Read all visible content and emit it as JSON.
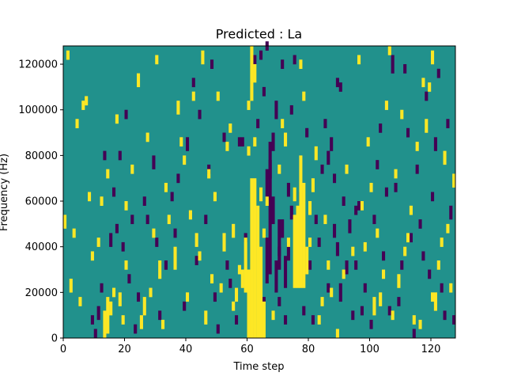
{
  "chart_data": {
    "type": "heatmap",
    "title": "Predicted : La",
    "xlabel": "Time step",
    "ylabel": "Frequency (Hz)",
    "xlim": [
      0,
      128
    ],
    "ylim": [
      0,
      128000
    ],
    "x_ticks": [
      0,
      20,
      40,
      60,
      80,
      100,
      120
    ],
    "x_tick_labels": [
      "0",
      "20",
      "40",
      "60",
      "80",
      "100",
      "120"
    ],
    "y_ticks": [
      0,
      20000,
      40000,
      60000,
      80000,
      100000,
      120000
    ],
    "y_tick_labels": [
      "0",
      "20000",
      "40000",
      "60000",
      "80000",
      "100000",
      "120000"
    ],
    "n_time_steps": 128,
    "n_freq_bins": 128,
    "freq_bin_width_hz": 1000,
    "colormap": "viridis",
    "value_levels": {
      "low": -1,
      "mid": 0,
      "high": 1
    },
    "colors": {
      "low": "#440154",
      "mid": "#21918c",
      "high": "#fde725"
    },
    "background_value": 0,
    "cells_high": [
      [
        60,
        0,
        30
      ],
      [
        61,
        0,
        70
      ],
      [
        62,
        0,
        70
      ],
      [
        63,
        0,
        58
      ],
      [
        64,
        0,
        40
      ],
      [
        65,
        0,
        16
      ],
      [
        59,
        20,
        24
      ],
      [
        58,
        22,
        8
      ],
      [
        75,
        22,
        32
      ],
      [
        76,
        22,
        36
      ],
      [
        77,
        22,
        58
      ],
      [
        78,
        22,
        46
      ],
      [
        79,
        28,
        12
      ],
      [
        13,
        0,
        12
      ],
      [
        14,
        2,
        16
      ],
      [
        15,
        10,
        6
      ],
      [
        16,
        18,
        4
      ],
      [
        18,
        14,
        6
      ],
      [
        20,
        30,
        4
      ],
      [
        25,
        4,
        6
      ],
      [
        26,
        10,
        8
      ],
      [
        31,
        26,
        8
      ],
      [
        36,
        30,
        10
      ],
      [
        43,
        40,
        6
      ],
      [
        46,
        6,
        6
      ],
      [
        48,
        24,
        4
      ],
      [
        52,
        38,
        8
      ],
      [
        55,
        44,
        6
      ],
      [
        56,
        16,
        6
      ],
      [
        57,
        28,
        4
      ],
      [
        60,
        100,
        4
      ],
      [
        61,
        104,
        24
      ],
      [
        62,
        112,
        8
      ],
      [
        64,
        60,
        6
      ],
      [
        71,
        92,
        4
      ],
      [
        72,
        84,
        6
      ],
      [
        75,
        60,
        6
      ],
      [
        80,
        54,
        6
      ],
      [
        81,
        64,
        6
      ],
      [
        82,
        78,
        6
      ],
      [
        84,
        14,
        4
      ],
      [
        89,
        0,
        4
      ],
      [
        98,
        38,
        4
      ],
      [
        101,
        10,
        8
      ],
      [
        103,
        14,
        6
      ],
      [
        104,
        26,
        4
      ],
      [
        109,
        22,
        6
      ],
      [
        112,
        42,
        4
      ],
      [
        115,
        82,
        4
      ],
      [
        116,
        4,
        4
      ],
      [
        118,
        90,
        6
      ],
      [
        119,
        108,
        4
      ],
      [
        120,
        16,
        4
      ],
      [
        121,
        12,
        8
      ],
      [
        122,
        30,
        4
      ],
      [
        123,
        40,
        4
      ],
      [
        124,
        76,
        6
      ],
      [
        125,
        46,
        4
      ],
      [
        126,
        20,
        4
      ],
      [
        127,
        66,
        6
      ],
      [
        2,
        20,
        6
      ],
      [
        3,
        44,
        4
      ],
      [
        5,
        14,
        4
      ],
      [
        6,
        100,
        4
      ],
      [
        8,
        60,
        4
      ],
      [
        11,
        40,
        4
      ],
      [
        14,
        70,
        4
      ],
      [
        17,
        94,
        4
      ],
      [
        20,
        56,
        4
      ],
      [
        24,
        110,
        6
      ],
      [
        27,
        86,
        4
      ],
      [
        30,
        120,
        4
      ],
      [
        33,
        64,
        4
      ],
      [
        37,
        98,
        6
      ],
      [
        39,
        76,
        4
      ],
      [
        41,
        52,
        4
      ],
      [
        45,
        120,
        6
      ],
      [
        50,
        104,
        4
      ],
      [
        54,
        90,
        4
      ],
      [
        66,
        58,
        4
      ],
      [
        70,
        72,
        4
      ],
      [
        78,
        104,
        4
      ],
      [
        83,
        6,
        4
      ],
      [
        86,
        30,
        4
      ],
      [
        91,
        26,
        4
      ],
      [
        96,
        120,
        4
      ],
      [
        100,
        64,
        4
      ],
      [
        106,
        124,
        4
      ],
      [
        110,
        96,
        4
      ],
      [
        113,
        54,
        4
      ],
      [
        117,
        110,
        4
      ],
      [
        0,
        48,
        6
      ],
      [
        1,
        122,
        4
      ],
      [
        4,
        92,
        4
      ],
      [
        7,
        102,
        4
      ],
      [
        9,
        34,
        4
      ],
      [
        12,
        58,
        4
      ],
      [
        19,
        6,
        4
      ],
      [
        22,
        72,
        4
      ],
      [
        28,
        18,
        4
      ],
      [
        29,
        44,
        4
      ],
      [
        32,
        4,
        4
      ],
      [
        34,
        50,
        4
      ],
      [
        38,
        84,
        4
      ],
      [
        40,
        16,
        4
      ],
      [
        42,
        104,
        4
      ],
      [
        44,
        34,
        4
      ],
      [
        47,
        70,
        4
      ],
      [
        49,
        60,
        4
      ],
      [
        51,
        20,
        4
      ],
      [
        53,
        82,
        4
      ],
      [
        55,
        12,
        4
      ],
      [
        60,
        80,
        4
      ],
      [
        62,
        84,
        4
      ],
      [
        65,
        44,
        4
      ],
      [
        68,
        8,
        4
      ],
      [
        73,
        40,
        4
      ],
      [
        77,
        118,
        4
      ],
      [
        80,
        40,
        4
      ],
      [
        85,
        50,
        4
      ],
      [
        87,
        18,
        4
      ],
      [
        92,
        72,
        4
      ],
      [
        94,
        36,
        4
      ],
      [
        97,
        56,
        4
      ],
      [
        99,
        84,
        4
      ],
      [
        102,
        44,
        4
      ],
      [
        105,
        100,
        4
      ],
      [
        107,
        8,
        4
      ],
      [
        108,
        70,
        4
      ],
      [
        111,
        36,
        4
      ],
      [
        114,
        6,
        4
      ],
      [
        120,
        120,
        6
      ]
    ],
    "cells_low": [
      [
        61,
        0,
        4
      ],
      [
        64,
        4,
        6
      ],
      [
        65,
        14,
        4
      ],
      [
        66,
        24,
        20
      ],
      [
        67,
        28,
        50
      ],
      [
        68,
        50,
        12
      ],
      [
        69,
        20,
        14
      ],
      [
        70,
        36,
        16
      ],
      [
        71,
        44,
        8
      ],
      [
        72,
        22,
        14
      ],
      [
        73,
        34,
        8
      ],
      [
        74,
        52,
        6
      ],
      [
        66,
        60,
        14
      ],
      [
        67,
        70,
        16
      ],
      [
        68,
        82,
        8
      ],
      [
        69,
        96,
        8
      ],
      [
        70,
        30,
        10
      ],
      [
        73,
        62,
        6
      ],
      [
        57,
        84,
        4
      ],
      [
        58,
        84,
        4
      ],
      [
        86,
        76,
        6
      ],
      [
        87,
        82,
        6
      ],
      [
        88,
        44,
        6
      ],
      [
        89,
        36,
        6
      ],
      [
        90,
        16,
        8
      ],
      [
        91,
        58,
        4
      ],
      [
        92,
        28,
        6
      ],
      [
        93,
        46,
        6
      ],
      [
        94,
        8,
        4
      ],
      [
        95,
        54,
        4
      ],
      [
        10,
        0,
        4
      ],
      [
        11,
        8,
        6
      ],
      [
        12,
        20,
        4
      ],
      [
        15,
        40,
        6
      ],
      [
        16,
        62,
        4
      ],
      [
        18,
        78,
        4
      ],
      [
        19,
        38,
        4
      ],
      [
        21,
        24,
        4
      ],
      [
        22,
        50,
        4
      ],
      [
        23,
        2,
        4
      ],
      [
        24,
        16,
        4
      ],
      [
        27,
        50,
        4
      ],
      [
        29,
        74,
        6
      ],
      [
        30,
        40,
        4
      ],
      [
        33,
        30,
        4
      ],
      [
        35,
        60,
        4
      ],
      [
        37,
        68,
        4
      ],
      [
        40,
        82,
        6
      ],
      [
        42,
        110,
        4
      ],
      [
        44,
        96,
        4
      ],
      [
        46,
        50,
        4
      ],
      [
        47,
        72,
        4
      ],
      [
        49,
        16,
        4
      ],
      [
        50,
        2,
        4
      ],
      [
        53,
        30,
        4
      ],
      [
        56,
        6,
        4
      ],
      [
        59,
        42,
        4
      ],
      [
        62,
        120,
        4
      ],
      [
        63,
        92,
        4
      ],
      [
        65,
        106,
        4
      ],
      [
        66,
        126,
        4
      ],
      [
        70,
        14,
        4
      ],
      [
        72,
        6,
        4
      ],
      [
        75,
        120,
        4
      ],
      [
        77,
        60,
        4
      ],
      [
        78,
        10,
        4
      ],
      [
        80,
        30,
        4
      ],
      [
        82,
        50,
        4
      ],
      [
        84,
        72,
        4
      ],
      [
        85,
        92,
        4
      ],
      [
        88,
        68,
        4
      ],
      [
        90,
        108,
        4
      ],
      [
        96,
        56,
        4
      ],
      [
        98,
        20,
        4
      ],
      [
        100,
        4,
        4
      ],
      [
        102,
        74,
        4
      ],
      [
        104,
        34,
        4
      ],
      [
        106,
        10,
        4
      ],
      [
        107,
        116,
        8
      ],
      [
        108,
        64,
        4
      ],
      [
        110,
        30,
        4
      ],
      [
        112,
        88,
        4
      ],
      [
        114,
        0,
        4
      ],
      [
        116,
        48,
        4
      ],
      [
        118,
        104,
        4
      ],
      [
        119,
        26,
        4
      ],
      [
        121,
        82,
        6
      ],
      [
        123,
        20,
        4
      ],
      [
        125,
        92,
        4
      ],
      [
        126,
        52,
        6
      ],
      [
        127,
        6,
        4
      ],
      [
        9,
        6,
        4
      ],
      [
        13,
        78,
        4
      ],
      [
        17,
        46,
        4
      ],
      [
        20,
        96,
        4
      ],
      [
        26,
        58,
        4
      ],
      [
        31,
        8,
        4
      ],
      [
        36,
        44,
        4
      ],
      [
        39,
        12,
        4
      ],
      [
        43,
        32,
        4
      ],
      [
        48,
        118,
        4
      ],
      [
        52,
        86,
        4
      ],
      [
        54,
        22,
        4
      ],
      [
        64,
        122,
        4
      ],
      [
        71,
        118,
        4
      ],
      [
        74,
        98,
        4
      ],
      [
        79,
        88,
        4
      ],
      [
        81,
        6,
        4
      ],
      [
        83,
        40,
        4
      ],
      [
        86,
        20,
        4
      ],
      [
        89,
        110,
        4
      ],
      [
        95,
        30,
        4
      ],
      [
        97,
        10,
        4
      ],
      [
        101,
        50,
        4
      ],
      [
        103,
        90,
        4
      ],
      [
        105,
        62,
        4
      ],
      [
        109,
        14,
        4
      ],
      [
        111,
        116,
        4
      ],
      [
        113,
        42,
        4
      ],
      [
        115,
        72,
        4
      ],
      [
        117,
        34,
        4
      ],
      [
        120,
        60,
        4
      ],
      [
        122,
        114,
        4
      ],
      [
        124,
        8,
        4
      ]
    ]
  }
}
